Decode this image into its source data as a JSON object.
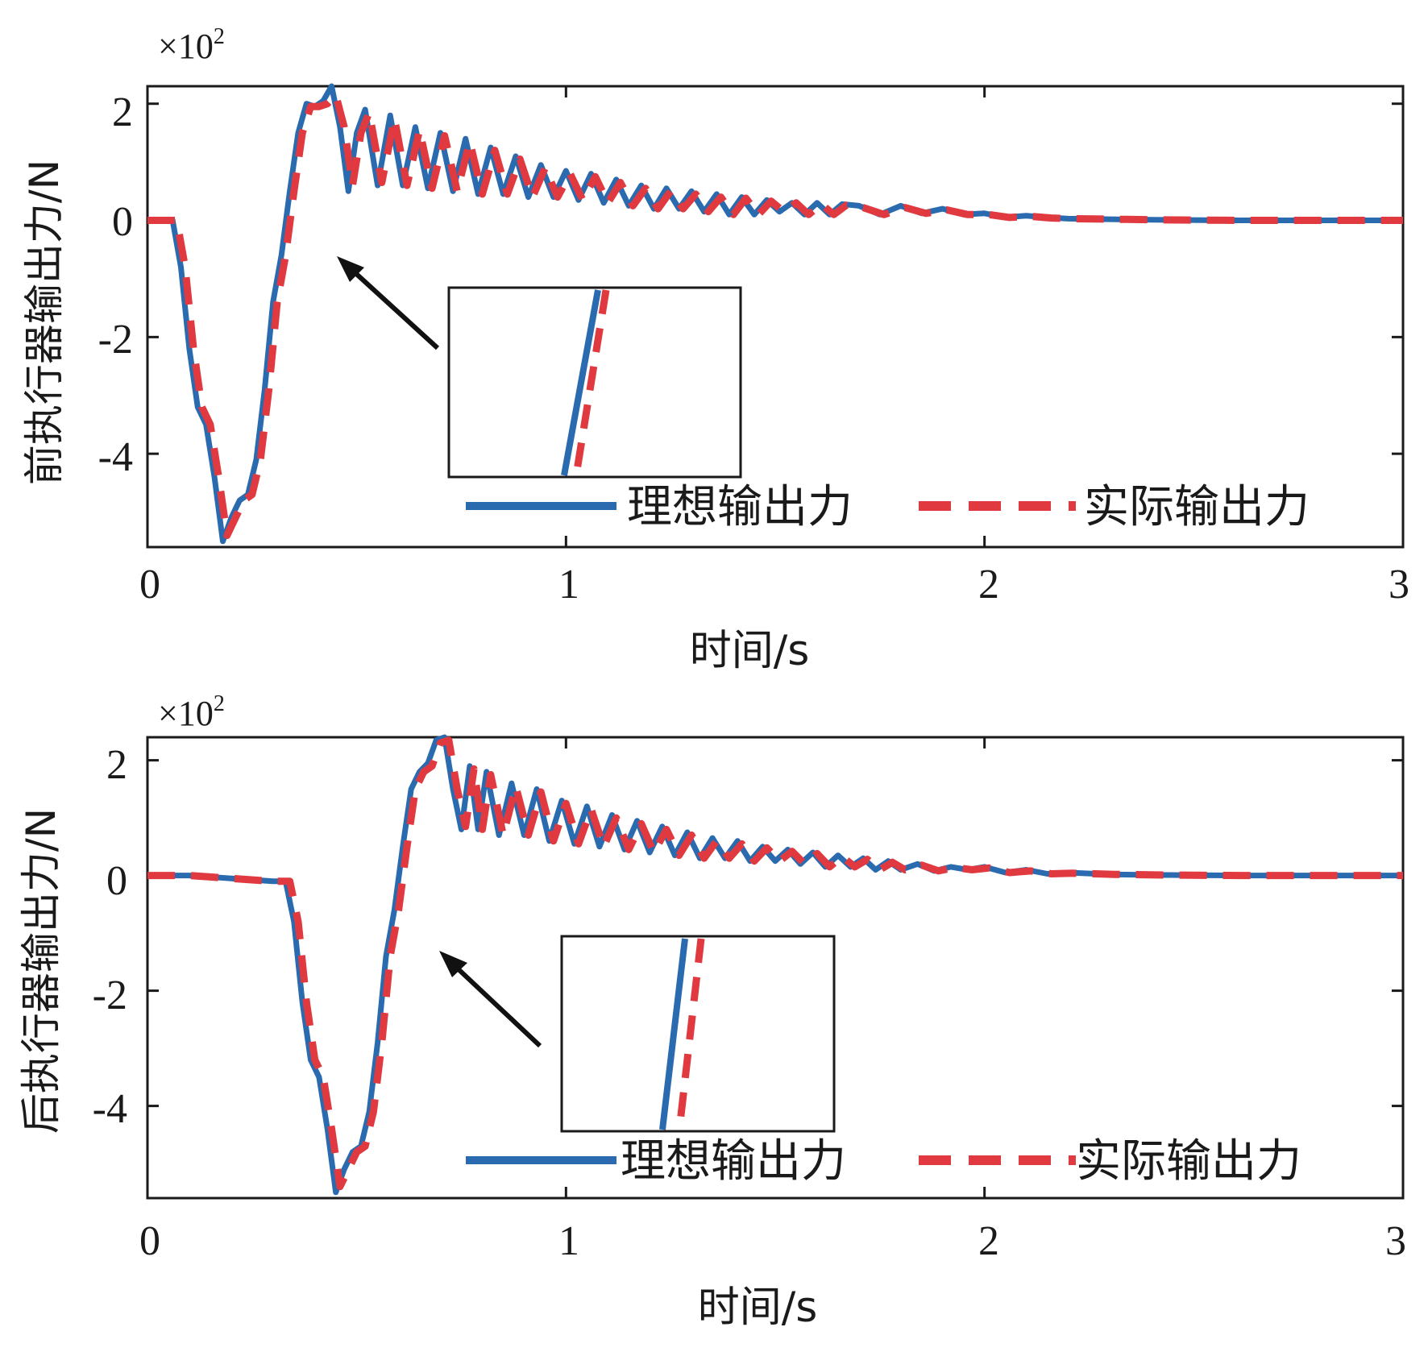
{
  "colors": {
    "ideal": "#2a6aae",
    "actual": "#e03a40",
    "axis": "#1a1a1a",
    "arrow": "#111111"
  },
  "chart_data": [
    {
      "type": "line",
      "id": "front",
      "xlabel": "时间/s",
      "ylabel": "前执行器输出力/N",
      "y_multiplier_label": "×10",
      "y_multiplier_exp": "2",
      "xlim": [
        0,
        3
      ],
      "ylim": [
        -5.6,
        2.3
      ],
      "xticks": [
        0,
        1,
        2,
        3
      ],
      "xtick_labels": [
        "0",
        "1",
        "2",
        "3"
      ],
      "yticks": [
        2,
        0,
        -2,
        -4
      ],
      "ytick_labels": [
        "2",
        "0",
        "-2",
        "-4"
      ],
      "legend": {
        "placement": "bottom-right",
        "entries": [
          "理想输出力",
          "实际输出力"
        ]
      },
      "annotation": "inset zoom of rising edge near t≈0.42 s",
      "series": [
        {
          "name": "理想输出力",
          "style": "solid",
          "x": [
            0,
            0.06,
            0.08,
            0.1,
            0.12,
            0.14,
            0.16,
            0.18,
            0.2,
            0.22,
            0.24,
            0.26,
            0.28,
            0.3,
            0.32,
            0.34,
            0.36,
            0.38,
            0.4,
            0.42,
            0.44,
            0.46,
            0.48,
            0.5,
            0.52,
            0.55,
            0.58,
            0.61,
            0.64,
            0.67,
            0.7,
            0.73,
            0.76,
            0.79,
            0.82,
            0.85,
            0.88,
            0.91,
            0.94,
            0.97,
            1.0,
            1.03,
            1.06,
            1.09,
            1.12,
            1.15,
            1.18,
            1.21,
            1.24,
            1.27,
            1.3,
            1.33,
            1.36,
            1.39,
            1.42,
            1.45,
            1.48,
            1.51,
            1.54,
            1.57,
            1.6,
            1.63,
            1.66,
            1.7,
            1.75,
            1.8,
            1.85,
            1.9,
            1.95,
            2.0,
            2.05,
            2.1,
            2.15,
            2.2,
            2.3,
            2.4,
            2.6,
            2.8,
            3.0
          ],
          "y": [
            0,
            0,
            -0.8,
            -2.2,
            -3.2,
            -3.5,
            -4.4,
            -5.5,
            -5.1,
            -4.8,
            -4.7,
            -4.1,
            -2.9,
            -1.4,
            -0.6,
            0.5,
            1.5,
            2.0,
            1.95,
            2.05,
            2.3,
            1.6,
            0.5,
            1.5,
            1.9,
            0.6,
            1.8,
            0.6,
            1.6,
            0.55,
            1.5,
            0.5,
            1.4,
            0.45,
            1.25,
            0.45,
            1.1,
            0.4,
            0.95,
            0.4,
            0.85,
            0.35,
            0.8,
            0.3,
            0.7,
            0.25,
            0.6,
            0.2,
            0.55,
            0.2,
            0.5,
            0.15,
            0.45,
            0.1,
            0.4,
            0.1,
            0.35,
            0.15,
            0.3,
            0.1,
            0.3,
            0.1,
            0.28,
            0.25,
            0.1,
            0.25,
            0.12,
            0.2,
            0.1,
            0.12,
            0.05,
            0.08,
            0.05,
            0.03,
            0.02,
            0.01,
            0,
            0,
            0
          ]
        },
        {
          "name": "实际输出力",
          "style": "dashed",
          "x": [
            0,
            0.07,
            0.09,
            0.11,
            0.13,
            0.15,
            0.17,
            0.19,
            0.21,
            0.23,
            0.25,
            0.27,
            0.29,
            0.31,
            0.33,
            0.35,
            0.37,
            0.39,
            0.41,
            0.43,
            0.45,
            0.47,
            0.49,
            0.51,
            0.53,
            0.56,
            0.59,
            0.62,
            0.65,
            0.68,
            0.71,
            0.74,
            0.77,
            0.8,
            0.83,
            0.86,
            0.89,
            0.92,
            0.95,
            0.98,
            1.01,
            1.04,
            1.07,
            1.1,
            1.13,
            1.16,
            1.19,
            1.22,
            1.25,
            1.28,
            1.31,
            1.34,
            1.37,
            1.4,
            1.43,
            1.46,
            1.49,
            1.52,
            1.55,
            1.58,
            1.61,
            1.64,
            1.67,
            1.71,
            1.76,
            1.81,
            1.86,
            1.91,
            1.96,
            2.01,
            2.06,
            2.11,
            2.16,
            2.21,
            2.31,
            2.41,
            2.61,
            2.81,
            3.0
          ],
          "y": [
            0,
            0,
            -0.8,
            -2.2,
            -3.2,
            -3.5,
            -4.4,
            -5.4,
            -5.1,
            -4.8,
            -4.7,
            -4.1,
            -2.9,
            -1.4,
            -0.6,
            0.5,
            1.5,
            1.95,
            1.95,
            2.0,
            2.15,
            1.6,
            0.6,
            1.5,
            1.85,
            0.65,
            1.75,
            0.6,
            1.55,
            0.55,
            1.45,
            0.5,
            1.35,
            0.45,
            1.2,
            0.45,
            1.05,
            0.4,
            0.9,
            0.4,
            0.8,
            0.35,
            0.75,
            0.3,
            0.65,
            0.25,
            0.55,
            0.2,
            0.5,
            0.2,
            0.45,
            0.15,
            0.4,
            0.1,
            0.38,
            0.1,
            0.33,
            0.15,
            0.3,
            0.1,
            0.28,
            0.1,
            0.26,
            0.22,
            0.1,
            0.22,
            0.12,
            0.18,
            0.1,
            0.1,
            0.05,
            0.07,
            0.04,
            0.03,
            0.02,
            0.01,
            0,
            0,
            0
          ]
        }
      ]
    },
    {
      "type": "line",
      "id": "rear",
      "xlabel": "时间/s",
      "ylabel": "后执行器输出力/N",
      "y_multiplier_label": "×10",
      "y_multiplier_exp": "2",
      "xlim": [
        0,
        3
      ],
      "ylim": [
        -5.6,
        2.4
      ],
      "xticks": [
        0,
        1,
        2,
        3
      ],
      "xtick_labels": [
        "0",
        "1",
        "2",
        "3"
      ],
      "yticks": [
        2,
        0,
        -2,
        -4
      ],
      "ytick_labels": [
        "2",
        "0",
        "-2",
        "-4"
      ],
      "legend": {
        "placement": "bottom-right",
        "entries": [
          "理想输出力",
          "实际输出力"
        ]
      },
      "annotation": "inset zoom of rising edge near t≈0.68 s",
      "series": [
        {
          "name": "理想输出力",
          "style": "solid",
          "x": [
            0,
            0.1,
            0.2,
            0.3,
            0.33,
            0.35,
            0.37,
            0.39,
            0.41,
            0.43,
            0.45,
            0.47,
            0.49,
            0.51,
            0.53,
            0.55,
            0.57,
            0.59,
            0.61,
            0.63,
            0.65,
            0.67,
            0.69,
            0.71,
            0.73,
            0.75,
            0.77,
            0.79,
            0.81,
            0.84,
            0.87,
            0.9,
            0.93,
            0.96,
            0.99,
            1.02,
            1.05,
            1.08,
            1.11,
            1.14,
            1.17,
            1.2,
            1.23,
            1.26,
            1.29,
            1.32,
            1.35,
            1.38,
            1.41,
            1.44,
            1.47,
            1.5,
            1.53,
            1.56,
            1.59,
            1.62,
            1.65,
            1.68,
            1.71,
            1.74,
            1.77,
            1.8,
            1.84,
            1.88,
            1.92,
            1.96,
            2.0,
            2.05,
            2.1,
            2.15,
            2.2,
            2.3,
            2.4,
            2.6,
            2.8,
            3.0
          ],
          "y": [
            0,
            0,
            -0.05,
            -0.1,
            -0.1,
            -0.8,
            -2.2,
            -3.2,
            -3.5,
            -4.4,
            -5.5,
            -5.1,
            -4.8,
            -4.7,
            -4.1,
            -2.9,
            -1.4,
            -0.6,
            0.5,
            1.5,
            1.8,
            1.95,
            2.35,
            2.4,
            1.5,
            0.8,
            1.9,
            0.8,
            1.8,
            0.7,
            1.6,
            0.7,
            1.5,
            0.6,
            1.3,
            0.55,
            1.2,
            0.5,
            1.05,
            0.45,
            0.95,
            0.4,
            0.85,
            0.35,
            0.75,
            0.3,
            0.65,
            0.3,
            0.6,
            0.25,
            0.5,
            0.25,
            0.45,
            0.2,
            0.4,
            0.15,
            0.35,
            0.15,
            0.3,
            0.1,
            0.25,
            0.1,
            0.2,
            0.08,
            0.15,
            0.1,
            0.15,
            0.05,
            0.1,
            0.03,
            0.05,
            0.02,
            0.01,
            0,
            0,
            0
          ]
        },
        {
          "name": "实际输出力",
          "style": "dashed",
          "x": [
            0,
            0.1,
            0.2,
            0.3,
            0.34,
            0.36,
            0.38,
            0.4,
            0.42,
            0.44,
            0.46,
            0.48,
            0.5,
            0.52,
            0.54,
            0.56,
            0.58,
            0.6,
            0.62,
            0.64,
            0.66,
            0.68,
            0.7,
            0.72,
            0.74,
            0.76,
            0.78,
            0.8,
            0.82,
            0.85,
            0.88,
            0.91,
            0.94,
            0.97,
            1.0,
            1.03,
            1.06,
            1.09,
            1.12,
            1.15,
            1.18,
            1.21,
            1.24,
            1.27,
            1.3,
            1.33,
            1.36,
            1.39,
            1.42,
            1.45,
            1.48,
            1.51,
            1.54,
            1.57,
            1.6,
            1.63,
            1.66,
            1.69,
            1.72,
            1.75,
            1.78,
            1.81,
            1.85,
            1.89,
            1.93,
            1.97,
            2.01,
            2.06,
            2.11,
            2.16,
            2.21,
            2.31,
            2.41,
            2.61,
            2.81,
            3.0
          ],
          "y": [
            0,
            0,
            -0.05,
            -0.1,
            -0.1,
            -0.8,
            -2.2,
            -3.2,
            -3.5,
            -4.4,
            -5.4,
            -5.1,
            -4.8,
            -4.7,
            -4.1,
            -2.9,
            -1.4,
            -0.6,
            0.5,
            1.5,
            1.8,
            1.9,
            2.3,
            2.35,
            1.5,
            0.85,
            1.85,
            0.8,
            1.75,
            0.7,
            1.55,
            0.7,
            1.45,
            0.6,
            1.25,
            0.55,
            1.15,
            0.5,
            1.0,
            0.45,
            0.9,
            0.4,
            0.8,
            0.35,
            0.7,
            0.3,
            0.6,
            0.3,
            0.55,
            0.25,
            0.48,
            0.25,
            0.42,
            0.2,
            0.38,
            0.15,
            0.33,
            0.15,
            0.28,
            0.1,
            0.23,
            0.1,
            0.18,
            0.08,
            0.14,
            0.1,
            0.13,
            0.05,
            0.08,
            0.03,
            0.04,
            0.02,
            0.01,
            0,
            0,
            0
          ]
        }
      ]
    }
  ]
}
